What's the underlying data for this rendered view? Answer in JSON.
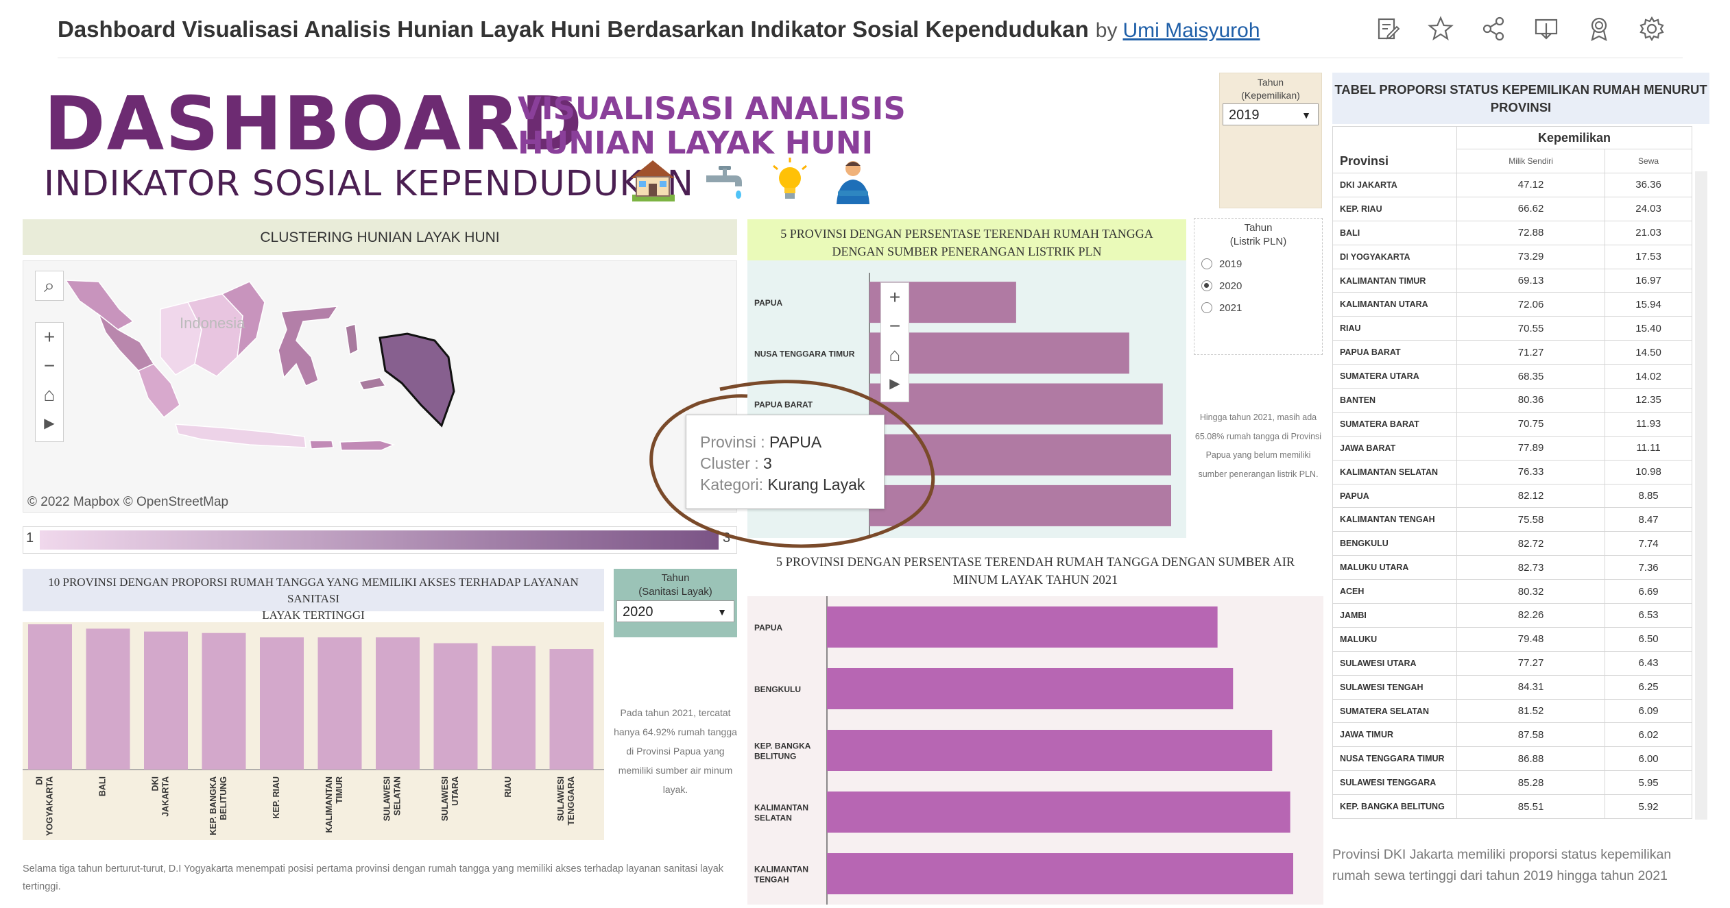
{
  "header": {
    "title": "Dashboard Visualisasi Analisis Hunian Layak Huni Berdasarkan Indikator Sosial Kependudukan",
    "by": "by",
    "author": "Umi Maisyuroh",
    "icons": [
      "edit-icon",
      "star-icon",
      "share-icon",
      "download-icon",
      "badge-icon",
      "gear-icon"
    ]
  },
  "banner": {
    "dashboard": "DASHBOARD",
    "subtitle_line1": "VISUALISASI ANALISIS",
    "subtitle_line2": "HUNIAN LAYAK HUNI",
    "indikator": "INDIKATOR SOSIAL KEPENDUDUKAN",
    "icons": [
      "house-icon",
      "water-tap-icon",
      "light-bulb-icon",
      "person-icon"
    ]
  },
  "filters": {
    "kepemilikan": {
      "label_line1": "Tahun",
      "label_line2": "(Kepemilikan)",
      "value": "2019"
    },
    "listrik": {
      "label_line1": "Tahun",
      "label_line2": "(Listrik PLN)",
      "options": [
        "2019",
        "2020",
        "2021"
      ],
      "selected": "2020"
    },
    "sanitasi": {
      "label_line1": "Tahun",
      "label_line2": "(Sanitasi Layak)",
      "value": "2020"
    }
  },
  "map": {
    "title": "CLUSTERING HUNIAN LAYAK HUNI",
    "country_label": "Indonesia",
    "attribution": "© 2022 Mapbox  © OpenStreetMap",
    "legend_min": "1",
    "legend_max": "3",
    "colors": {
      "low": "#f0d8ec",
      "high": "#7b5486"
    }
  },
  "tooltip": {
    "provinsi_label": "Provinsi :",
    "provinsi_value": "PAPUA",
    "cluster_label": "Cluster  :",
    "cluster_value": "3",
    "kategori_label": "Kategori:",
    "kategori_value": "Kurang Layak"
  },
  "listrik": {
    "title_line1": "5 PROVINSI DENGAN PERSENTASE TERENDAH RUMAH TANGGA",
    "title_line2": "DENGAN SUMBER PENERANGAN LISTRIK PLN",
    "note": "Hingga tahun 2021, masih ada 65.08% rumah tangga di Provinsi Papua yang belum memiliki sumber penerangan listrik PLN."
  },
  "sanitasi": {
    "title_line1": "10 PROVINSI DENGAN PROPORSI RUMAH TANGGA YANG MEMILIKI AKSES TERHADAP LAYANAN SANITASI",
    "title_line2": "LAYAK TERTINGGI",
    "note": "Pada tahun 2021, tercatat hanya 64.92% rumah tangga di Provinsi Papua yang memiliki sumber air minum layak.",
    "footer": "Selama tiga tahun berturut-turut, D.I Yogyakarta menempati posisi pertama provinsi dengan rumah tangga yang memiliki akses terhadap layanan sanitasi layak tertinggi."
  },
  "air": {
    "title_line1": "5 PROVINSI DENGAN PERSENTASE TERENDAH RUMAH TANGGA DENGAN SUMBER AIR",
    "title_line2": "MINUM LAYAK TAHUN 2021"
  },
  "table": {
    "title_line1": "TABEL PROPORSI STATUS KEPEMILIKAN RUMAH MENURUT",
    "title_line2": "PROVINSI",
    "col_group": "Kepemilikan",
    "col_prov": "Provinsi",
    "col_milik": "Milik Sendiri",
    "col_sewa": "Sewa",
    "rows": [
      [
        "DKI JAKARTA",
        "47.12",
        "36.36"
      ],
      [
        "KEP. RIAU",
        "66.62",
        "24.03"
      ],
      [
        "BALI",
        "72.88",
        "21.03"
      ],
      [
        "DI YOGYAKARTA",
        "73.29",
        "17.53"
      ],
      [
        "KALIMANTAN TIMUR",
        "69.13",
        "16.97"
      ],
      [
        "KALIMANTAN UTARA",
        "72.06",
        "15.94"
      ],
      [
        "RIAU",
        "70.55",
        "15.40"
      ],
      [
        "PAPUA BARAT",
        "71.27",
        "14.50"
      ],
      [
        "SUMATERA UTARA",
        "68.35",
        "14.02"
      ],
      [
        "BANTEN",
        "80.36",
        "12.35"
      ],
      [
        "SUMATERA BARAT",
        "70.75",
        "11.93"
      ],
      [
        "JAWA BARAT",
        "77.89",
        "11.11"
      ],
      [
        "KALIMANTAN SELATAN",
        "76.33",
        "10.98"
      ],
      [
        "PAPUA",
        "82.12",
        "8.85"
      ],
      [
        "KALIMANTAN TENGAH",
        "75.58",
        "8.47"
      ],
      [
        "BENGKULU",
        "82.72",
        "7.74"
      ],
      [
        "MALUKU UTARA",
        "82.73",
        "7.36"
      ],
      [
        "ACEH",
        "80.32",
        "6.69"
      ],
      [
        "JAMBI",
        "82.26",
        "6.53"
      ],
      [
        "MALUKU",
        "79.48",
        "6.50"
      ],
      [
        "SULAWESI UTARA",
        "77.27",
        "6.43"
      ],
      [
        "SULAWESI TENGAH",
        "84.31",
        "6.25"
      ],
      [
        "SUMATERA SELATAN",
        "81.52",
        "6.09"
      ],
      [
        "JAWA TIMUR",
        "87.58",
        "6.02"
      ],
      [
        "NUSA TENGGARA TIMUR",
        "86.88",
        "6.00"
      ],
      [
        "SULAWESI TENGGARA",
        "85.28",
        "5.95"
      ],
      [
        "KEP. BANGKA BELITUNG",
        "85.51",
        "5.92"
      ]
    ],
    "note": "Provinsi DKI Jakarta memiliki proporsi status kepemilikan rumah sewa tertinggi dari tahun 2019 hingga tahun 2021"
  },
  "chart_data": [
    {
      "type": "bar",
      "orientation": "horizontal",
      "categories": [
        "PAPUA",
        "NUSA TENGGARA TIMUR",
        "PAPUA BARAT",
        "",
        "KALIMANTAN BARAT"
      ],
      "values": [
        35,
        62,
        70,
        72,
        72
      ],
      "color": "#b07aa3"
    },
    {
      "type": "bar",
      "orientation": "vertical",
      "categories": [
        "DI YOGYAKARTA",
        "BALI",
        "DKI JAKARTA",
        "KEP. BANGKA BELITUNG",
        "KEP. RIAU",
        "KALIMANTAN TIMUR",
        "SULAWESI SELATAN",
        "SULAWESI UTARA",
        "RIAU",
        "SULAWESI TENGGARA"
      ],
      "values": [
        100,
        97,
        95,
        94,
        91,
        91,
        91,
        87,
        85,
        83
      ],
      "color": "#d3a8cb"
    },
    {
      "type": "bar",
      "orientation": "horizontal",
      "categories": [
        "PAPUA",
        "BENGKULU",
        "KEP. BANGKA BELITUNG",
        "KALIMANTAN SELATAN",
        "KALIMANTAN TENGAH"
      ],
      "values": [
        64.92,
        67.5,
        74,
        77,
        77.5
      ],
      "color": "#b766b3"
    }
  ]
}
